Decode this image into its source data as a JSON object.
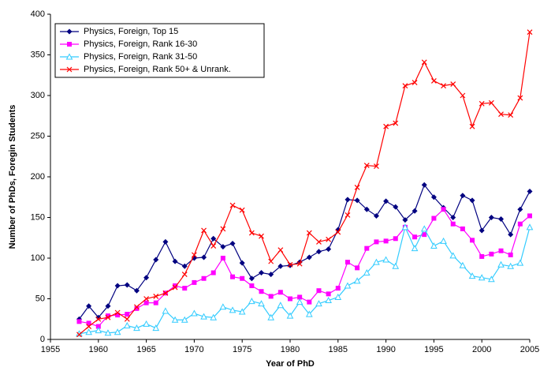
{
  "chart_data": {
    "type": "line",
    "xlabel": "Year of PhD",
    "ylabel": "Number of PhDs, Foregin Students",
    "x": [
      1958,
      1959,
      1960,
      1961,
      1962,
      1963,
      1964,
      1965,
      1966,
      1967,
      1968,
      1969,
      1970,
      1971,
      1972,
      1973,
      1974,
      1975,
      1976,
      1977,
      1978,
      1979,
      1980,
      1981,
      1982,
      1983,
      1984,
      1985,
      1986,
      1987,
      1988,
      1989,
      1990,
      1991,
      1992,
      1993,
      1994,
      1995,
      1996,
      1997,
      1998,
      1999,
      2000,
      2001,
      2002,
      2003,
      2004,
      2005
    ],
    "series": [
      {
        "name": "Physics, Foreign, Top 15",
        "color": "#000080",
        "marker": "diamond",
        "values": [
          25,
          41,
          27,
          41,
          66,
          67,
          60,
          76,
          98,
          120,
          96,
          90,
          100,
          101,
          124,
          114,
          118,
          94,
          75,
          82,
          80,
          90,
          91,
          95,
          101,
          108,
          111,
          135,
          172,
          171,
          160,
          152,
          170,
          163,
          147,
          158,
          190,
          175,
          162,
          150,
          177,
          171,
          134,
          150,
          148,
          129,
          160,
          182
        ]
      },
      {
        "name": "Physics, Foreign, Rank 16-30",
        "color": "#ff00ff",
        "marker": "square",
        "values": [
          22,
          20,
          16,
          29,
          30,
          31,
          38,
          45,
          45,
          57,
          66,
          63,
          70,
          75,
          82,
          100,
          77,
          75,
          66,
          59,
          53,
          58,
          50,
          52,
          46,
          60,
          56,
          63,
          95,
          88,
          112,
          120,
          121,
          124,
          138,
          126,
          129,
          149,
          160,
          142,
          136,
          122,
          102,
          105,
          109,
          104,
          142,
          152
        ]
      },
      {
        "name": "Physics, Foreign, Rank 31-50",
        "color": "#33ccff",
        "marker": "triangle",
        "values": [
          7,
          9,
          11,
          8,
          9,
          17,
          14,
          19,
          14,
          35,
          24,
          24,
          32,
          28,
          27,
          40,
          36,
          34,
          47,
          44,
          27,
          42,
          29,
          46,
          31,
          44,
          48,
          52,
          66,
          72,
          82,
          95,
          98,
          90,
          138,
          112,
          136,
          115,
          121,
          103,
          91,
          78,
          76,
          74,
          92,
          90,
          94,
          138
        ]
      },
      {
        "name": "Physics, Foreign, Rank 50+ & Unrank.",
        "color": "#ff0000",
        "marker": "x",
        "values": [
          6,
          16,
          25,
          27,
          33,
          25,
          40,
          50,
          53,
          57,
          64,
          80,
          104,
          134,
          115,
          136,
          165,
          159,
          131,
          127,
          96,
          110,
          92,
          93,
          131,
          120,
          123,
          132,
          153,
          187,
          214,
          213,
          262,
          266,
          312,
          316,
          341,
          318,
          312,
          314,
          300,
          262,
          290,
          291,
          277,
          276,
          297,
          378
        ]
      }
    ],
    "xlim": [
      1955,
      2005
    ],
    "xticks": [
      1955,
      1960,
      1965,
      1970,
      1975,
      1980,
      1985,
      1990,
      1995,
      2000,
      2005
    ],
    "ylim": [
      0,
      400
    ],
    "yticks": [
      0,
      50,
      100,
      150,
      200,
      250,
      300,
      350,
      400
    ],
    "grid": false,
    "legend": "upper left"
  }
}
